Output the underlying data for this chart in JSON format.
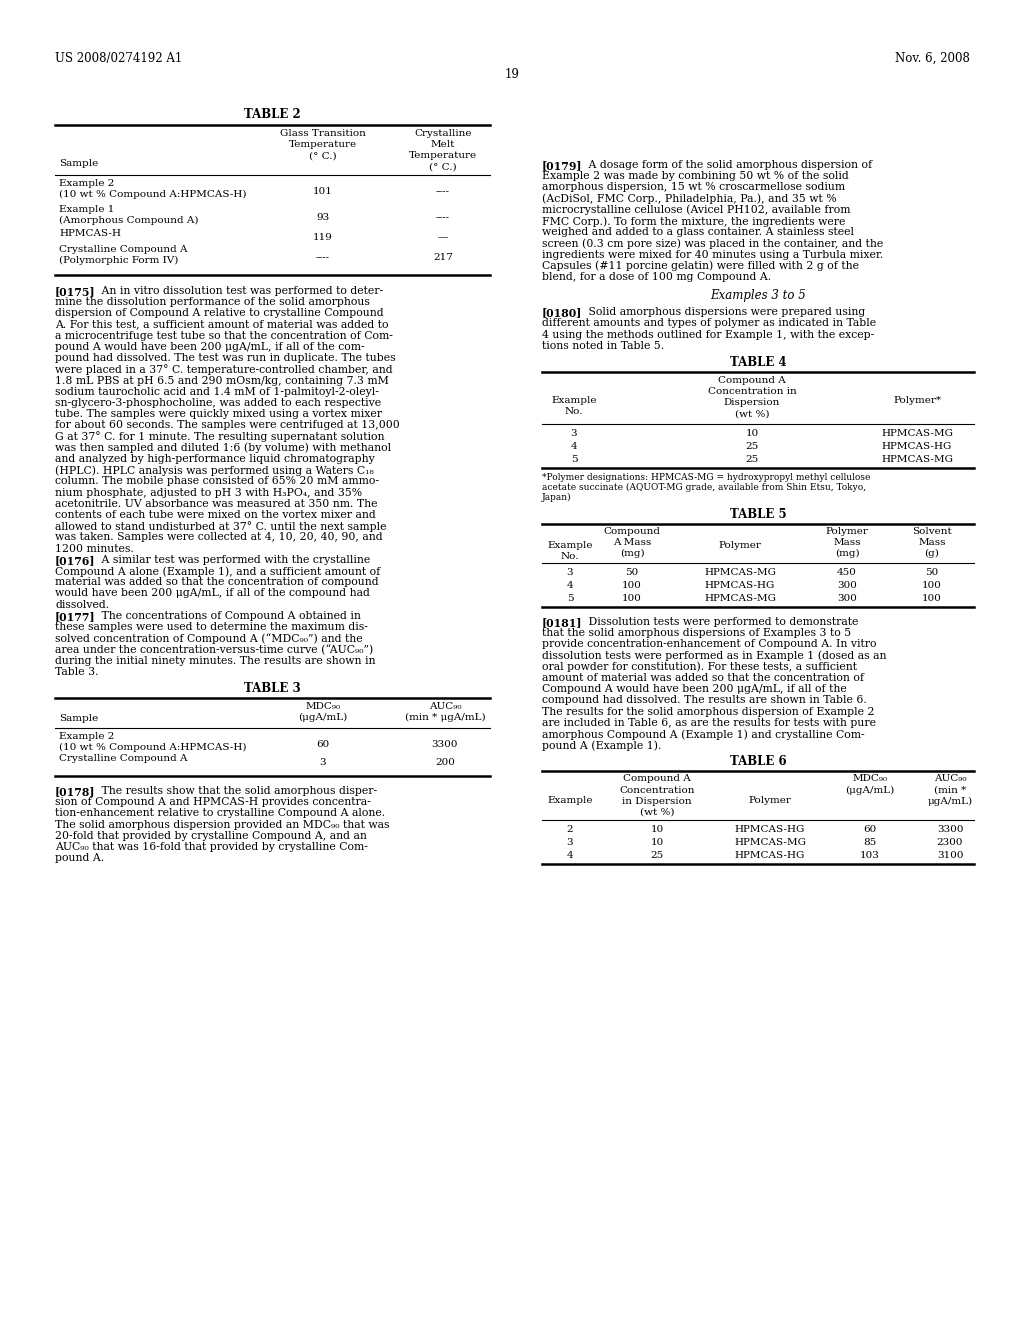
{
  "bg_color": "#ffffff",
  "header_left": "US 2008/0274192 A1",
  "header_right": "Nov. 6, 2008",
  "page_number": "19",
  "table2_title": "TABLE 2",
  "table2_rows": [
    [
      "Example 2\n(10 wt % Compound A:HPMCAS-H)",
      "101",
      "----"
    ],
    [
      "Example 1\n(Amorphous Compound A)",
      "93",
      "----"
    ],
    [
      "HPMCAS-H",
      "119",
      "—"
    ],
    [
      "Crystalline Compound A\n(Polymorphic Form IV)",
      "----",
      "217"
    ]
  ],
  "table3_title": "TABLE 3",
  "table3_rows": [
    [
      "Example 2\n(10 wt % Compound A:HPMCAS-H)",
      "60",
      "3300"
    ],
    [
      "Crystalline Compound A",
      "3",
      "200"
    ]
  ],
  "right_examples_heading": "Examples 3 to 5",
  "table4_title": "TABLE 4",
  "table4_rows": [
    [
      "3",
      "10",
      "HPMCAS-MG"
    ],
    [
      "4",
      "25",
      "HPMCAS-HG"
    ],
    [
      "5",
      "25",
      "HPMCAS-MG"
    ]
  ],
  "table4_footnote": "*Polymer designations: HPMCAS-MG = hydroxypropyl methyl cellulose\nacetate succinate (AQUOT-MG grade, available from Shin Etsu, Tokyo,\nJapan)",
  "table5_title": "TABLE 5",
  "table5_rows": [
    [
      "3",
      "50",
      "HPMCAS-MG",
      "450",
      "50"
    ],
    [
      "4",
      "100",
      "HPMCAS-HG",
      "300",
      "100"
    ],
    [
      "5",
      "100",
      "HPMCAS-MG",
      "300",
      "100"
    ]
  ],
  "table6_title": "TABLE 6",
  "table6_rows": [
    [
      "2",
      "10",
      "HPMCAS-HG",
      "60",
      "3300"
    ],
    [
      "3",
      "10",
      "HPMCAS-MG",
      "85",
      "2300"
    ],
    [
      "4",
      "25",
      "HPMCAS-HG",
      "103",
      "3100"
    ]
  ],
  "lines_0175_first": "   An in vitro dissolution test was performed to deter-",
  "lines_0175": [
    "mine the dissolution performance of the solid amorphous",
    "dispersion of Compound A relative to crystalline Compound",
    "A. For this test, a sufficient amount of material was added to",
    "a microcentrifuge test tube so that the concentration of Com-",
    "pound A would have been 200 μgA/mL, if all of the com-",
    "pound had dissolved. The test was run in duplicate. The tubes",
    "were placed in a 37° C. temperature-controlled chamber, and",
    "1.8 mL PBS at pH 6.5 and 290 mOsm/kg, containing 7.3 mM",
    "sodium taurocholic acid and 1.4 mM of 1-palmitoyl-2-oleyl-",
    "sn-glycero-3-phosphocholine, was added to each respective",
    "tube. The samples were quickly mixed using a vortex mixer",
    "for about 60 seconds. The samples were centrifuged at 13,000",
    "G at 37° C. for 1 minute. The resulting supernatant solution",
    "was then sampled and diluted 1:6 (by volume) with methanol",
    "and analyzed by high-performance liquid chromatography",
    "(HPLC). HPLC analysis was performed using a Waters C₁₈",
    "column. The mobile phase consisted of 65% 20 mM ammo-",
    "nium phosphate, adjusted to pH 3 with H₃PO₄, and 35%",
    "acetonitrile. UV absorbance was measured at 350 nm. The",
    "contents of each tube were mixed on the vortex mixer and",
    "allowed to stand undisturbed at 37° C. until the next sample",
    "was taken. Samples were collected at 4, 10, 20, 40, 90, and",
    "1200 minutes."
  ],
  "lines_0176_first": "   A similar test was performed with the crystalline",
  "lines_0176": [
    "Compound A alone (Example 1), and a sufficient amount of",
    "material was added so that the concentration of compound",
    "would have been 200 μgA/mL, if all of the compound had",
    "dissolved."
  ],
  "lines_0177_first": "   The concentrations of Compound A obtained in",
  "lines_0177": [
    "these samples were used to determine the maximum dis-",
    "solved concentration of Compound A (“MDC₉₀”) and the",
    "area under the concentration-versus-time curve (“AUC₉₀”)",
    "during the initial ninety minutes. The results are shown in",
    "Table 3."
  ],
  "lines_0178_first": "   The results show that the solid amorphous disper-",
  "lines_0178": [
    "sion of Compound A and HPMCAS-H provides concentra-",
    "tion-enhancement relative to crystalline Compound A alone.",
    "The solid amorphous dispersion provided an MDC₉₀ that was",
    "20-fold that provided by crystalline Compound A, and an",
    "AUC₉₀ that was 16-fold that provided by crystalline Com-",
    "pound A."
  ],
  "lines_0179_first": "   A dosage form of the solid amorphous dispersion of",
  "lines_0179": [
    "Example 2 was made by combining 50 wt % of the solid",
    "amorphous dispersion, 15 wt % croscarmellose sodium",
    "(AcDiSol, FMC Corp., Philadelphia, Pa.), and 35 wt %",
    "microcrystalline cellulose (Avicel PH102, available from",
    "FMC Corp.). To form the mixture, the ingredients were",
    "weighed and added to a glass container. A stainless steel",
    "screen (0.3 cm pore size) was placed in the container, and the",
    "ingredients were mixed for 40 minutes using a Turbula mixer.",
    "Capsules (#11 porcine gelatin) were filled with 2 g of the",
    "blend, for a dose of 100 mg Compound A."
  ],
  "lines_0180_first": "   Solid amorphous dispersions were prepared using",
  "lines_0180": [
    "different amounts and types of polymer as indicated in Table",
    "4 using the methods outlined for Example 1, with the excep-",
    "tions noted in Table 5."
  ],
  "lines_0181_first": "   Dissolution tests were performed to demonstrate",
  "lines_0181": [
    "that the solid amorphous dispersions of Examples 3 to 5",
    "provide concentration-enhancement of Compound A. In vitro",
    "dissolution tests were performed as in Example 1 (dosed as an",
    "oral powder for constitution). For these tests, a sufficient",
    "amount of material was added so that the concentration of",
    "Compound A would have been 200 μgA/mL, if all of the",
    "compound had dissolved. The results are shown in Table 6.",
    "The results for the solid amorphous dispersion of Example 2",
    "are included in Table 6, as are the results for tests with pure",
    "amorphous Compound A (Example 1) and crystalline Com-",
    "pound A (Example 1)."
  ]
}
